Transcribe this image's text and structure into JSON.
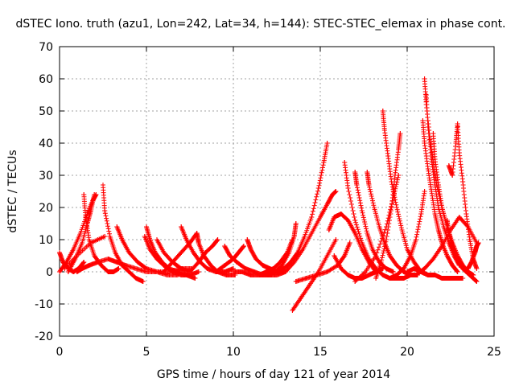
{
  "chart_data": {
    "type": "scatter",
    "title": "dSTEC Iono. truth (azu1, Lon=242, Lat=34, h=144): STEC-STEC_elemax in phase cont.",
    "xlabel": "GPS time / hours of day 121 of year 2014",
    "ylabel": "dSTEC  / TECUs",
    "xlim": [
      0,
      25
    ],
    "ylim": [
      -20,
      70
    ],
    "xticks": [
      "0",
      "5",
      "10",
      "15",
      "20",
      "25"
    ],
    "yticks": [
      "-20",
      "-10",
      "0",
      "10",
      "20",
      "30",
      "40",
      "50",
      "60",
      "70"
    ],
    "grid": true,
    "marker": "+",
    "color": "#ff0000",
    "series": [
      {
        "x": [
          0.0,
          0.2,
          0.5,
          0.8,
          1.1,
          1.4
        ],
        "y": [
          6,
          3,
          1,
          0,
          1,
          3
        ]
      },
      {
        "x": [
          0.0,
          0.4,
          0.8,
          1.2,
          1.6,
          1.9,
          2.1
        ],
        "y": [
          0,
          3,
          7,
          12,
          18,
          22,
          24
        ]
      },
      {
        "x": [
          1.4,
          1.5,
          1.7,
          2.0,
          2.4,
          2.8,
          3.1,
          3.4
        ],
        "y": [
          24,
          17,
          10,
          5,
          2,
          0,
          0,
          1
        ]
      },
      {
        "x": [
          0.5,
          0.9,
          1.3,
          1.6,
          1.8,
          2.0
        ],
        "y": [
          0,
          4,
          9,
          15,
          19,
          24
        ]
      },
      {
        "x": [
          2.5,
          2.6,
          2.9,
          3.2,
          3.6,
          4.0,
          4.4,
          4.8
        ],
        "y": [
          27,
          19,
          11,
          6,
          2,
          0,
          -2,
          -3
        ]
      },
      {
        "x": [
          1.0,
          1.3,
          1.7,
          2.2,
          2.8,
          3.3,
          3.8,
          4.4,
          5.0,
          5.6,
          6.3,
          7.0,
          7.6
        ],
        "y": [
          0,
          1,
          2,
          3,
          4,
          3,
          2,
          1,
          0,
          0,
          0,
          1,
          1
        ]
      },
      {
        "x": [
          0.3,
          1.0,
          1.8,
          2.6
        ],
        "y": [
          1,
          5,
          9,
          11
        ]
      },
      {
        "x": [
          3.3,
          3.6,
          4.0,
          4.5,
          5.0,
          5.6,
          6.2,
          6.8
        ],
        "y": [
          14,
          10,
          6,
          3,
          1,
          0,
          -1,
          -1
        ]
      },
      {
        "x": [
          5.0,
          5.2,
          5.5,
          5.9,
          6.3,
          6.8,
          7.3,
          7.8
        ],
        "y": [
          14,
          10,
          6,
          3,
          1,
          0,
          -1,
          -2
        ]
      },
      {
        "x": [
          4.9,
          5.2,
          5.6,
          6.0,
          6.5,
          7.0,
          7.5,
          8.0
        ],
        "y": [
          11,
          7,
          4,
          2,
          0,
          -1,
          -1,
          0
        ]
      },
      {
        "x": [
          5.6,
          6.0,
          6.5,
          7.0,
          7.5
        ],
        "y": [
          10,
          6,
          3,
          1,
          0
        ]
      },
      {
        "x": [
          7.0,
          7.3,
          7.7,
          8.1,
          8.5,
          9.0,
          9.5,
          10.0
        ],
        "y": [
          14,
          10,
          6,
          3,
          1,
          0,
          0,
          1
        ]
      },
      {
        "x": [
          6.0,
          6.5,
          7.0,
          7.5,
          7.9
        ],
        "y": [
          0,
          3,
          6,
          9,
          12
        ]
      },
      {
        "x": [
          7.9,
          8.0,
          8.3,
          8.7,
          9.1,
          9.6,
          10.1
        ],
        "y": [
          12,
          9,
          5,
          2,
          0,
          -1,
          -1
        ]
      },
      {
        "x": [
          7.5,
          8.0,
          8.4,
          8.8,
          9.1
        ],
        "y": [
          0,
          3,
          6,
          8,
          10
        ]
      },
      {
        "x": [
          9.5,
          9.8,
          10.2,
          10.7,
          11.2,
          11.7,
          12.2
        ],
        "y": [
          8,
          5,
          3,
          1,
          0,
          -1,
          -1
        ]
      },
      {
        "x": [
          9.0,
          9.5,
          10.0,
          10.3,
          10.6
        ],
        "y": [
          0,
          2,
          4,
          6,
          8
        ]
      },
      {
        "x": [
          10.8,
          11.0,
          11.3,
          11.7,
          12.1,
          12.5,
          12.9
        ],
        "y": [
          10,
          7,
          4,
          2,
          1,
          0,
          0
        ]
      },
      {
        "x": [
          10.0,
          10.5,
          11.0,
          11.5,
          12.0,
          12.5,
          13.0
        ],
        "y": [
          0,
          0,
          -1,
          -1,
          -1,
          -1,
          0
        ]
      },
      {
        "x": [
          12.0,
          12.4,
          12.8,
          13.2,
          13.5,
          13.6
        ],
        "y": [
          -1,
          0,
          2,
          6,
          11,
          15
        ]
      },
      {
        "x": [
          11.5,
          11.9,
          12.3,
          12.7,
          13.1,
          13.4
        ],
        "y": [
          -1,
          0,
          1,
          3,
          6,
          10
        ]
      },
      {
        "x": [
          12.5,
          12.9,
          13.3,
          13.7,
          14.1,
          14.5,
          14.9,
          15.2,
          15.4
        ],
        "y": [
          0,
          1,
          3,
          6,
          11,
          17,
          26,
          34,
          40
        ]
      },
      {
        "x": [
          13.4,
          13.9,
          14.4,
          14.9,
          15.4,
          15.9
        ],
        "y": [
          -12,
          -8,
          -4,
          0,
          5,
          10
        ]
      },
      {
        "x": [
          13.0,
          13.5,
          14.0,
          14.5,
          15.0,
          15.4,
          15.7,
          15.9
        ],
        "y": [
          0,
          3,
          7,
          12,
          17,
          21,
          24,
          25
        ]
      },
      {
        "x": [
          13.6,
          14.2,
          14.8,
          15.4,
          16.0,
          16.4,
          16.7
        ],
        "y": [
          -3,
          -2,
          -1,
          0,
          2,
          5,
          9
        ]
      },
      {
        "x": [
          16.4,
          16.6,
          17.0,
          17.4,
          17.8,
          18.2,
          18.6,
          19.0,
          19.4,
          19.8,
          20.2
        ],
        "y": [
          34,
          26,
          16,
          9,
          4,
          1,
          -1,
          -2,
          -2,
          -2,
          -1
        ]
      },
      {
        "x": [
          15.8,
          16.2,
          16.6,
          17.0,
          17.4,
          17.8,
          18.2,
          18.6
        ],
        "y": [
          5,
          1,
          -1,
          -2,
          -2,
          -1,
          0,
          1
        ]
      },
      {
        "x": [
          15.5,
          15.8,
          16.2,
          16.6,
          17.0,
          17.4,
          17.8,
          18.2
        ],
        "y": [
          13,
          17,
          18,
          16,
          12,
          7,
          3,
          0
        ]
      },
      {
        "x": [
          17.0,
          17.1,
          17.4,
          17.7,
          18.0,
          18.4,
          18.8,
          19.2
        ],
        "y": [
          31,
          27,
          19,
          12,
          7,
          3,
          1,
          0
        ]
      },
      {
        "x": [
          17.7,
          17.8,
          18.1,
          18.4,
          18.7,
          19.0,
          19.4,
          19.8,
          20.2,
          20.6
        ],
        "y": [
          31,
          27,
          20,
          14,
          9,
          5,
          2,
          0,
          -1,
          -1
        ]
      },
      {
        "x": [
          17.0,
          17.6,
          18.2,
          18.8,
          19.2,
          19.5
        ],
        "y": [
          -3,
          0,
          5,
          14,
          23,
          30
        ]
      },
      {
        "x": [
          18.6,
          18.7,
          18.9,
          19.1,
          19.4,
          19.7,
          20.0,
          20.4,
          20.8,
          21.2
        ],
        "y": [
          50,
          44,
          36,
          28,
          20,
          13,
          7,
          3,
          0,
          -1
        ]
      },
      {
        "x": [
          18.2,
          18.5,
          18.8,
          19.1,
          19.3,
          19.5,
          19.6
        ],
        "y": [
          -2,
          3,
          10,
          20,
          30,
          38,
          43
        ]
      },
      {
        "x": [
          19.0,
          19.4,
          19.8,
          20.2,
          20.5,
          20.8,
          21.0
        ],
        "y": [
          -2,
          -1,
          1,
          5,
          10,
          18,
          25
        ]
      },
      {
        "x": [
          20.0,
          20.4,
          20.8,
          21.2,
          21.6,
          22.0,
          22.4,
          22.8,
          23.2
        ],
        "y": [
          0,
          1,
          0,
          -1,
          -1,
          -2,
          -2,
          -2,
          -2
        ]
      },
      {
        "x": [
          21.0,
          21.1,
          21.3,
          21.5,
          21.7,
          22.0,
          22.3,
          22.6,
          23.0,
          23.4,
          23.8
        ],
        "y": [
          60,
          52,
          42,
          34,
          27,
          20,
          14,
          8,
          3,
          0,
          -1
        ]
      },
      {
        "x": [
          20.9,
          21.0,
          21.2,
          21.4,
          21.6,
          21.8,
          22.0,
          22.3,
          22.6,
          22.9
        ],
        "y": [
          47,
          40,
          32,
          25,
          18,
          13,
          9,
          5,
          2,
          0
        ]
      },
      {
        "x": [
          21.1,
          21.2,
          21.4,
          21.6,
          21.8,
          22.1,
          22.4,
          22.7,
          23.0
        ],
        "y": [
          55,
          45,
          35,
          27,
          20,
          14,
          9,
          5,
          2
        ]
      },
      {
        "x": [
          21.5,
          21.6,
          21.8,
          22.0,
          22.3,
          22.6,
          22.9,
          23.2,
          23.5,
          23.8
        ],
        "y": [
          43,
          35,
          27,
          20,
          14,
          9,
          5,
          2,
          0,
          -1
        ]
      },
      {
        "x": [
          22.3,
          22.4,
          22.6,
          22.8,
          23.0,
          23.2,
          23.4,
          23.6,
          23.8,
          24.0
        ],
        "y": [
          16,
          12,
          8,
          5,
          3,
          1,
          0,
          -1,
          -2,
          -3
        ]
      },
      {
        "x": [
          22.4,
          22.6,
          22.8,
          22.9,
          23.0,
          23.2,
          23.4,
          23.6,
          23.8,
          24.0
        ],
        "y": [
          33,
          30,
          40,
          46,
          37,
          28,
          18,
          10,
          4,
          1
        ]
      },
      {
        "x": [
          20.5,
          21.0,
          21.5,
          22.0,
          22.5,
          23.0,
          23.5,
          24.0
        ],
        "y": [
          -1,
          1,
          4,
          8,
          13,
          17,
          14,
          9
        ]
      },
      {
        "x": [
          23.5,
          23.7,
          23.9,
          24.0,
          24.1
        ],
        "y": [
          1,
          3,
          6,
          8,
          9
        ]
      }
    ]
  }
}
